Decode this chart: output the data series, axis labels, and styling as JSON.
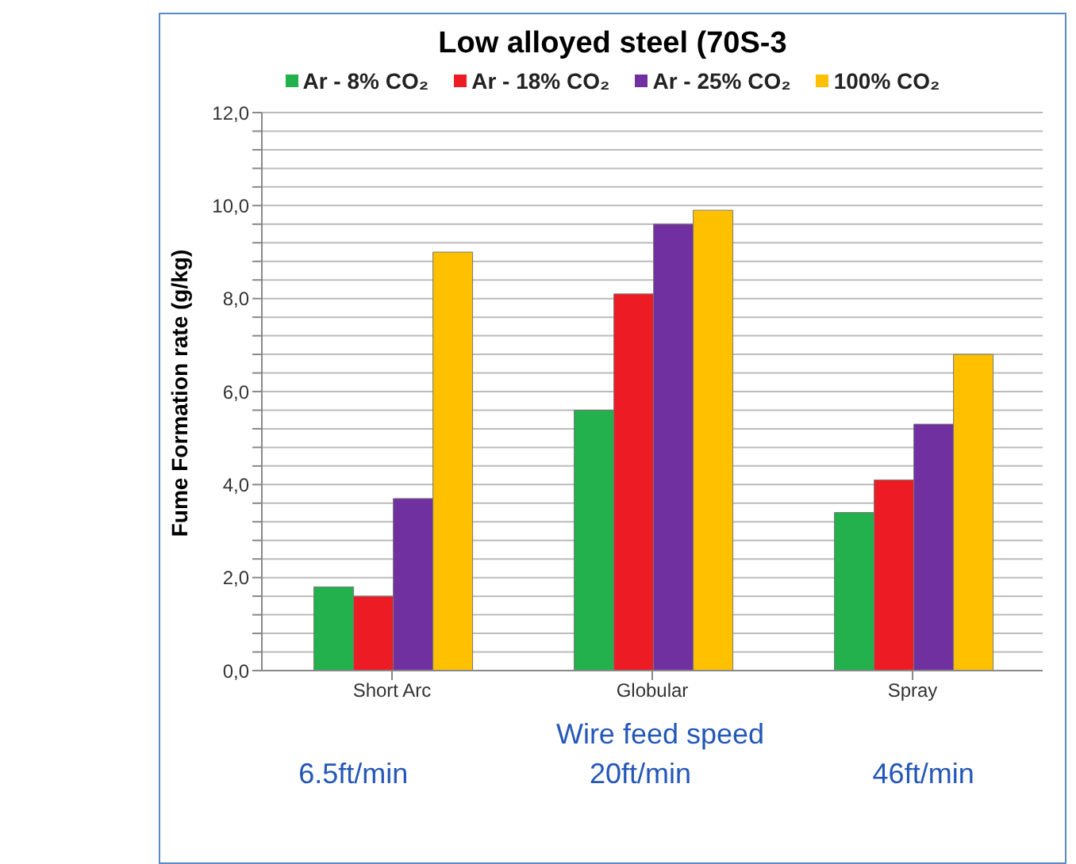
{
  "chart_data": {
    "type": "bar",
    "title": "Low alloyed steel (70S-3",
    "ylabel": "Fume Formation rate (g/kg)",
    "xlabel": "Wire feed speed",
    "categories": [
      "Short Arc",
      "Globular",
      "Spray"
    ],
    "series": [
      {
        "name": "Ar - 8% CO₂",
        "color": "#22b14c",
        "values": [
          1.8,
          5.6,
          3.4
        ]
      },
      {
        "name": "Ar - 18% CO₂",
        "color": "#ed1c24",
        "values": [
          1.6,
          8.1,
          4.1
        ]
      },
      {
        "name": "Ar - 25% CO₂",
        "color": "#7030a0",
        "values": [
          3.7,
          9.6,
          5.3
        ]
      },
      {
        "name": "100% CO₂",
        "color": "#ffc000",
        "values": [
          9.0,
          9.9,
          6.8
        ]
      }
    ],
    "ylim": [
      0,
      12
    ],
    "yticks": [
      {
        "value": 0,
        "label": "0,0"
      },
      {
        "value": 0.4,
        "label": null
      },
      {
        "value": 0.8,
        "label": null
      },
      {
        "value": 1.2,
        "label": null
      },
      {
        "value": 1.6,
        "label": null
      },
      {
        "value": 2,
        "label": "2,0"
      },
      {
        "value": 2.4,
        "label": null
      },
      {
        "value": 2.8,
        "label": null
      },
      {
        "value": 3.2,
        "label": null
      },
      {
        "value": 3.6,
        "label": null
      },
      {
        "value": 4,
        "label": "4,0"
      },
      {
        "value": 4.4,
        "label": null
      },
      {
        "value": 4.8,
        "label": null
      },
      {
        "value": 5.2,
        "label": null
      },
      {
        "value": 5.6,
        "label": null
      },
      {
        "value": 6,
        "label": "6,0"
      },
      {
        "value": 6.4,
        "label": null
      },
      {
        "value": 6.8,
        "label": null
      },
      {
        "value": 7.2,
        "label": null
      },
      {
        "value": 7.6,
        "label": null
      },
      {
        "value": 8,
        "label": "8,0"
      },
      {
        "value": 8.4,
        "label": null
      },
      {
        "value": 8.8,
        "label": null
      },
      {
        "value": 9.2,
        "label": null
      },
      {
        "value": 9.6,
        "label": null
      },
      {
        "value": 10,
        "label": "10,0"
      },
      {
        "value": 10.4,
        "label": null
      },
      {
        "value": 10.8,
        "label": null
      },
      {
        "value": 11.2,
        "label": null
      },
      {
        "value": 11.6,
        "label": null
      },
      {
        "value": 12,
        "label": "12,0"
      }
    ],
    "grid": "y",
    "legend": "top",
    "annotations": [
      "6.5ft/min",
      "20ft/min",
      "46ft/min"
    ]
  }
}
